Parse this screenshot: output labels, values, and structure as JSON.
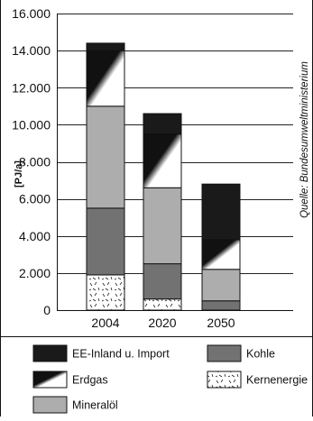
{
  "chart_data": {
    "type": "bar",
    "stacked": true,
    "categories": [
      "2004",
      "2020",
      "2050"
    ],
    "ylabel": "[PJ/a]",
    "ylim": [
      0,
      16000
    ],
    "y_ticks": [
      "0",
      "2.000",
      "4.000",
      "6.000",
      "8.000",
      "10.000",
      "12.000",
      "14.000",
      "16.000"
    ],
    "y_tick_values": [
      0,
      2000,
      4000,
      6000,
      8000,
      10000,
      12000,
      14000,
      16000
    ],
    "grid": true,
    "legend_position": "bottom",
    "source": "Quelle: Bundesumweltministerium",
    "series": [
      {
        "name": "Kernenergie",
        "values": [
          1900,
          600,
          0
        ],
        "fill": "pattern-kern"
      },
      {
        "name": "Kohle",
        "values": [
          3600,
          1900,
          500
        ],
        "fill": "#727272"
      },
      {
        "name": "Mineralöl",
        "values": [
          5500,
          4100,
          1700
        ],
        "fill": "#adadad"
      },
      {
        "name": "Erdgas",
        "values": [
          3000,
          2900,
          1600
        ],
        "fill": "pattern-gas"
      },
      {
        "name": "EE-Inland u. Import",
        "values": [
          400,
          1100,
          3000
        ],
        "fill": "#1a1a1a"
      }
    ]
  },
  "legend": {
    "items": [
      {
        "label": "EE-Inland u. Import",
        "fill": "#1a1a1a"
      },
      {
        "label": "Kohle",
        "fill": "#727272"
      },
      {
        "label": "Erdgas",
        "fill": "pattern-gas"
      },
      {
        "label": "Kernenergie",
        "fill": "pattern-kern"
      },
      {
        "label": "Mineralöl",
        "fill": "#adadad"
      }
    ]
  }
}
